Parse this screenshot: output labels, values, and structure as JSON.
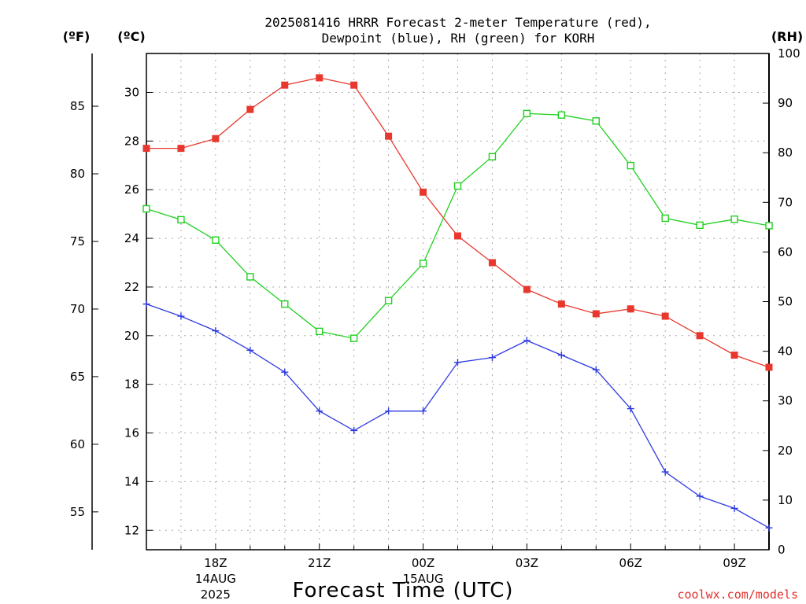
{
  "header": {
    "title_line1": "2025081416 HRRR Forecast 2-meter Temperature (red),",
    "title_line2": "Dewpoint (blue), RH (green) for KORH"
  },
  "units": {
    "fahrenheit": "(ºF)",
    "celsius": "(ºC)",
    "rh": "(RH)"
  },
  "footer": {
    "xtitle": "Forecast Time (UTC)",
    "credit": "coolwx.com/models"
  },
  "colors": {
    "temperature": "#e8382e",
    "dewpoint": "#2e3be0",
    "rh": "#1fd11f",
    "axis": "#000000",
    "credit": "#e0302a"
  },
  "chart_data": {
    "type": "line",
    "title": "2025081416 HRRR Forecast 2-meter Temperature (red), Dewpoint (blue), RH (green) for KORH",
    "xlabel": "Forecast Time (UTC)",
    "x": [
      16,
      17,
      18,
      19,
      20,
      21,
      22,
      23,
      24,
      25,
      26,
      27,
      28,
      29,
      30,
      31,
      32,
      33,
      34
    ],
    "x_unit": "hours UTC from 00Z 14AUG2025",
    "xlim": [
      16,
      34
    ],
    "x_ticks": [
      {
        "x": 18,
        "label": "18Z",
        "sub1": "14AUG",
        "sub2": "2025"
      },
      {
        "x": 21,
        "label": "21Z",
        "sub1": "",
        "sub2": ""
      },
      {
        "x": 24,
        "label": "00Z",
        "sub1": "15AUG",
        "sub2": ""
      },
      {
        "x": 27,
        "label": "03Z",
        "sub1": "",
        "sub2": ""
      },
      {
        "x": 30,
        "label": "06Z",
        "sub1": "",
        "sub2": ""
      },
      {
        "x": 33,
        "label": "09Z",
        "sub1": "",
        "sub2": ""
      }
    ],
    "x_minor_grid": [
      17,
      19,
      20,
      22,
      23,
      25,
      26,
      28,
      29,
      31,
      32
    ],
    "axes": {
      "celsius": {
        "ylim": [
          11.2,
          31.6
        ],
        "ticks": [
          12,
          14,
          16,
          18,
          20,
          22,
          24,
          26,
          28,
          30
        ]
      },
      "fahrenheit": {
        "ylim": [
          52.2,
          88.9
        ],
        "ticks": [
          55,
          60,
          65,
          70,
          75,
          80,
          85
        ]
      },
      "rh": {
        "ylim": [
          0,
          100
        ],
        "ticks": [
          0,
          10,
          20,
          30,
          40,
          50,
          60,
          70,
          80,
          90,
          100
        ]
      }
    },
    "series": [
      {
        "name": "Temperature",
        "axis": "celsius",
        "marker": "filled-square",
        "values": [
          27.7,
          27.7,
          28.1,
          29.3,
          30.3,
          30.6,
          30.3,
          28.2,
          25.9,
          24.1,
          23.0,
          21.9,
          21.3,
          20.9,
          21.1,
          20.8,
          20.0,
          19.2,
          18.7
        ]
      },
      {
        "name": "Dewpoint",
        "axis": "celsius",
        "marker": "plus",
        "values": [
          21.3,
          20.8,
          20.2,
          19.4,
          18.5,
          16.9,
          16.1,
          16.9,
          16.9,
          18.9,
          19.1,
          19.8,
          19.2,
          18.6,
          17.0,
          14.4,
          13.4,
          12.9,
          12.1
        ]
      },
      {
        "name": "RH",
        "axis": "rh",
        "marker": "open-square",
        "values": [
          68.7,
          66.5,
          62.4,
          55.0,
          49.5,
          44.0,
          42.6,
          50.2,
          57.7,
          73.3,
          79.2,
          87.9,
          87.6,
          86.4,
          77.4,
          66.8,
          65.4,
          66.6,
          65.3
        ]
      }
    ]
  }
}
